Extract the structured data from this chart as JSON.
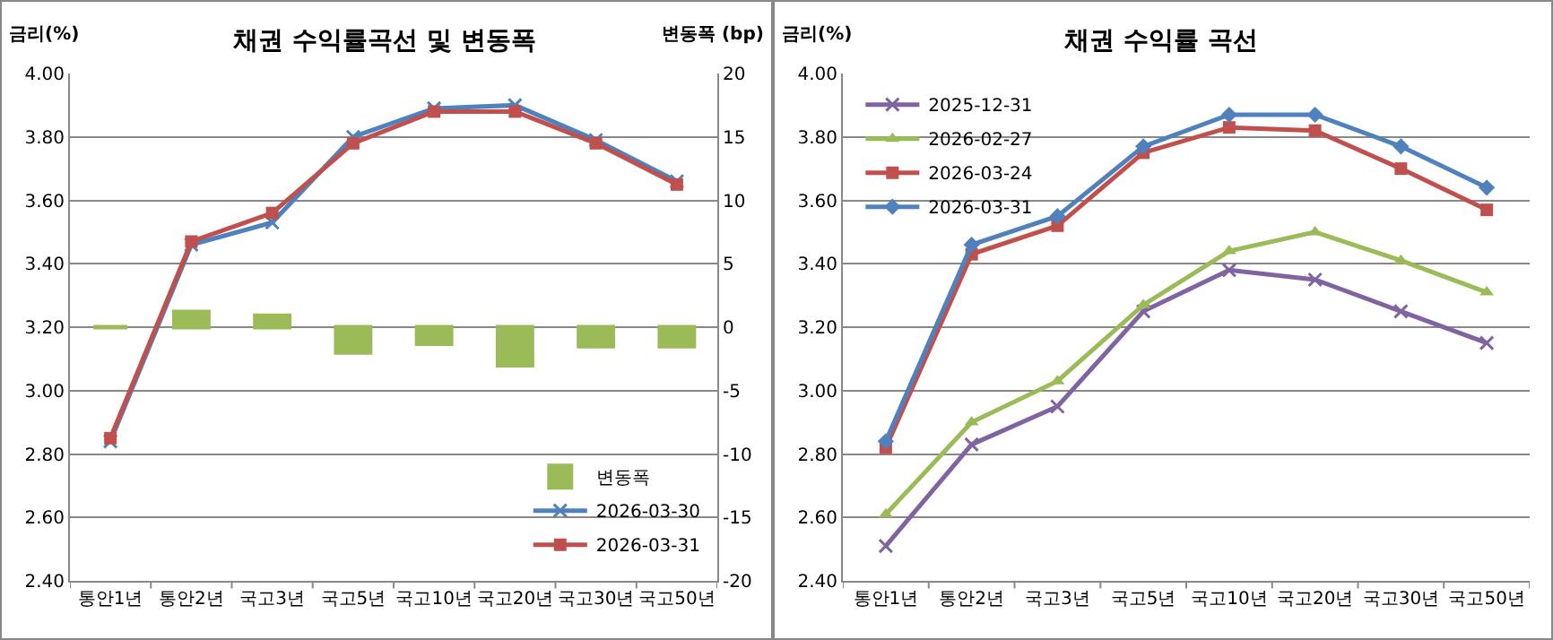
{
  "chart_data": [
    {
      "type": "line",
      "title": "채권 수익률곡선 및 변동폭",
      "ylabel": "금리(%)",
      "y2label": "변동폭 (bp)",
      "categories": [
        "통안1년",
        "통안2년",
        "국고3년",
        "국고5년",
        "국고10년",
        "국고20년",
        "국고30년",
        "국고50년"
      ],
      "series": [
        {
          "name": "변동폭",
          "type": "bar",
          "axis": "y2",
          "color": "#9bbb59",
          "values": [
            0,
            1.2,
            0.9,
            -2.0,
            -1.3,
            -3.0,
            -1.5,
            -1.5
          ]
        },
        {
          "name": "2026-03-30",
          "color": "#4f81bd",
          "marker": "cross",
          "values": [
            2.84,
            3.46,
            3.53,
            3.8,
            3.89,
            3.9,
            3.79,
            3.66
          ]
        },
        {
          "name": "2026-03-31",
          "color": "#c0504d",
          "marker": "square",
          "values": [
            2.85,
            3.47,
            3.56,
            3.78,
            3.88,
            3.88,
            3.78,
            3.65
          ]
        }
      ],
      "ylim": [
        2.4,
        4.0
      ],
      "yticks": [
        {
          "value": 2.4,
          "label": "2.40"
        },
        {
          "value": 2.6,
          "label": "2.60"
        },
        {
          "value": 2.8,
          "label": "2.80"
        },
        {
          "value": 3.0,
          "label": "3.00"
        },
        {
          "value": 3.2,
          "label": "3.20"
        },
        {
          "value": 3.4,
          "label": "3.40"
        },
        {
          "value": 3.6,
          "label": "3.60"
        },
        {
          "value": 3.8,
          "label": "3.80"
        },
        {
          "value": 4.0,
          "label": "4.00"
        }
      ],
      "y2lim": [
        -20,
        20
      ],
      "y2ticks": [
        -20,
        -15,
        -10,
        -5,
        0,
        5,
        10,
        15,
        20
      ],
      "grid": "y",
      "legend": "bottom right",
      "line_style": "solid"
    },
    {
      "type": "line",
      "title": "채권 수익률 곡선",
      "ylabel": "금리(%)",
      "categories": [
        "통안1년",
        "통안2년",
        "국고3년",
        "국고5년",
        "국고10년",
        "국고20년",
        "국고30년",
        "국고50년"
      ],
      "series": [
        {
          "name": "2025-12-31",
          "color": "#8064a2",
          "marker": "cross",
          "values": [
            2.51,
            2.83,
            2.95,
            3.25,
            3.38,
            3.35,
            3.25,
            3.15
          ]
        },
        {
          "name": "2026-02-27",
          "color": "#9bbb59",
          "marker": "triangle",
          "values": [
            2.61,
            2.9,
            3.03,
            3.27,
            3.44,
            3.5,
            3.41,
            3.31
          ]
        },
        {
          "name": "2026-03-24",
          "color": "#c0504d",
          "marker": "square",
          "values": [
            2.82,
            3.43,
            3.52,
            3.75,
            3.83,
            3.82,
            3.7,
            3.57
          ]
        },
        {
          "name": "2026-03-31",
          "color": "#4f81bd",
          "marker": "diamond",
          "values": [
            2.84,
            3.46,
            3.55,
            3.77,
            3.87,
            3.87,
            3.77,
            3.64
          ]
        }
      ],
      "ylim": [
        2.4,
        4.0
      ],
      "yticks": [
        {
          "value": 2.4,
          "label": "2.40"
        },
        {
          "value": 2.6,
          "label": "2.60"
        },
        {
          "value": 2.8,
          "label": "2.80"
        },
        {
          "value": 3.0,
          "label": "3.00"
        },
        {
          "value": 3.2,
          "label": "3.20"
        },
        {
          "value": 3.4,
          "label": "3.40"
        },
        {
          "value": 3.6,
          "label": "3.60"
        },
        {
          "value": 3.8,
          "label": "3.80"
        },
        {
          "value": 4.0,
          "label": "4.00"
        }
      ],
      "grid": "y",
      "legend": "top left",
      "line_style": "solid"
    }
  ]
}
